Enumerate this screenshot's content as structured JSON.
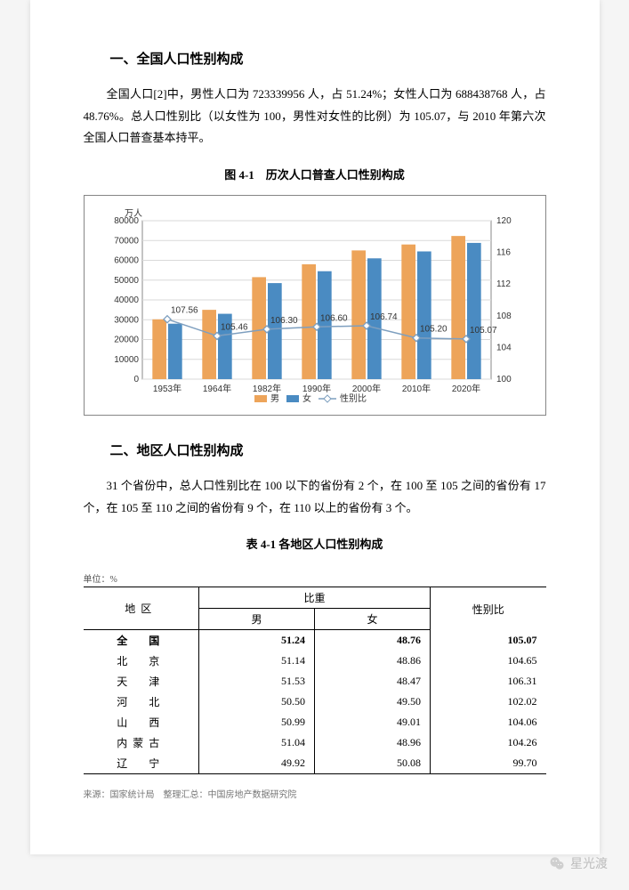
{
  "section1": {
    "heading": "一、全国人口性别构成",
    "paragraph": "全国人口[2]中，男性人口为 723339956 人，占 51.24%；女性人口为 688438768 人，占 48.76%。总人口性别比（以女性为 100，男性对女性的比例）为 105.07，与 2010 年第六次全国人口普查基本持平。"
  },
  "chart": {
    "title": "图 4-1　历次人口普查人口性别构成",
    "y1_label": "万人",
    "y1_lim": [
      0,
      80000
    ],
    "y1_step": 10000,
    "y2_lim": [
      100,
      120
    ],
    "y2_step": 4,
    "categories": [
      "1953年",
      "1964年",
      "1982年",
      "1990年",
      "2000年",
      "2010年",
      "2020年"
    ],
    "male": [
      30200,
      35000,
      51500,
      58000,
      65000,
      68000,
      72300
    ],
    "female": [
      28000,
      33000,
      48500,
      54500,
      61000,
      64500,
      68800
    ],
    "ratio": [
      107.56,
      105.46,
      106.3,
      106.6,
      106.74,
      105.2,
      105.07
    ],
    "colors": {
      "male": "#eda45a",
      "female": "#4a8bc2",
      "ratio": "#7e9fbf",
      "grid": "#d9d9d9",
      "plot_border": "#8a8a8a",
      "background": "#ffffff"
    },
    "bar_width": 0.28,
    "legend": {
      "male": "男",
      "female": "女",
      "ratio": "性别比"
    },
    "label_fontsize": 10
  },
  "section2": {
    "heading": "二、地区人口性别构成",
    "paragraph": "31 个省份中，总人口性别比在 100 以下的省份有 2 个，在 100 至 105 之间的省份有 17 个，在 105 至 110 之间的省份有 9 个，在 110 以上的省份有 3 个。"
  },
  "table": {
    "title": "表 4-1 各地区人口性别构成",
    "unit": "单位：%",
    "headers": {
      "region": "地区",
      "prop": "比重",
      "male": "男",
      "female": "女",
      "ratio": "性别比"
    },
    "rows": [
      {
        "region": "全　国",
        "male": "51.24",
        "female": "48.76",
        "ratio": "105.07",
        "national": true
      },
      {
        "region": "北　京",
        "male": "51.14",
        "female": "48.86",
        "ratio": "104.65"
      },
      {
        "region": "天　津",
        "male": "51.53",
        "female": "48.47",
        "ratio": "106.31"
      },
      {
        "region": "河　北",
        "male": "50.50",
        "female": "49.50",
        "ratio": "102.02"
      },
      {
        "region": "山　西",
        "male": "50.99",
        "female": "49.01",
        "ratio": "104.06"
      },
      {
        "region": "内蒙古",
        "male": "51.04",
        "female": "48.96",
        "ratio": "104.26"
      },
      {
        "region": "辽　宁",
        "male": "49.92",
        "female": "50.08",
        "ratio": "99.70"
      }
    ]
  },
  "source": "来源：国家统计局　整理汇总：中国房地产数据研究院",
  "watermark": "星光渡"
}
